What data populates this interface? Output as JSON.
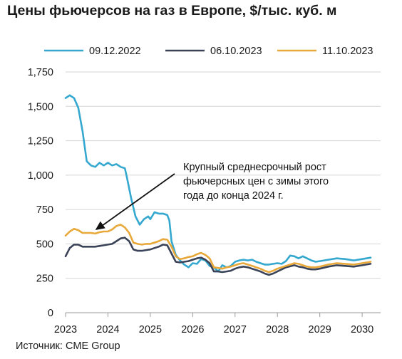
{
  "title": "Цены фьючерсов на газ в Европе, $/тыс. куб. м",
  "source": "Источник: CME Group",
  "chart_data": {
    "type": "line",
    "title": "Цены фьючерсов на газ в Европе, $/тыс. куб. м",
    "xlabel": "",
    "ylabel": "",
    "xlim": [
      2023,
      2030.2
    ],
    "ylim": [
      0,
      1750
    ],
    "x_ticks": [
      "2023",
      "2024",
      "2025",
      "2026",
      "2027",
      "2028",
      "2029",
      "2030"
    ],
    "y_ticks": [
      "0",
      "250",
      "500",
      "750",
      "1,000",
      "1,250",
      "1,500",
      "1,750"
    ],
    "grid": "horizontal",
    "legend": "top",
    "series": [
      {
        "name": "09.12.2022",
        "color": "#35a8d0",
        "points": [
          [
            2023.0,
            1560
          ],
          [
            2023.1,
            1580
          ],
          [
            2023.2,
            1560
          ],
          [
            2023.3,
            1490
          ],
          [
            2023.4,
            1320
          ],
          [
            2023.5,
            1100
          ],
          [
            2023.6,
            1070
          ],
          [
            2023.7,
            1060
          ],
          [
            2023.8,
            1090
          ],
          [
            2023.9,
            1070
          ],
          [
            2024.0,
            1090
          ],
          [
            2024.1,
            1070
          ],
          [
            2024.2,
            1080
          ],
          [
            2024.3,
            1060
          ],
          [
            2024.4,
            1050
          ],
          [
            2024.45,
            980
          ],
          [
            2024.55,
            830
          ],
          [
            2024.65,
            700
          ],
          [
            2024.75,
            640
          ],
          [
            2024.85,
            680
          ],
          [
            2024.95,
            700
          ],
          [
            2025.0,
            680
          ],
          [
            2025.1,
            730
          ],
          [
            2025.2,
            720
          ],
          [
            2025.3,
            720
          ],
          [
            2025.4,
            710
          ],
          [
            2025.45,
            670
          ],
          [
            2025.5,
            520
          ],
          [
            2025.6,
            420
          ],
          [
            2025.7,
            380
          ],
          [
            2025.8,
            350
          ],
          [
            2025.9,
            330
          ],
          [
            2026.0,
            360
          ],
          [
            2026.1,
            355
          ],
          [
            2026.2,
            390
          ],
          [
            2026.3,
            380
          ],
          [
            2026.4,
            340
          ],
          [
            2026.5,
            330
          ],
          [
            2026.6,
            300
          ],
          [
            2026.7,
            345
          ],
          [
            2026.8,
            330
          ],
          [
            2026.9,
            340
          ],
          [
            2027.0,
            370
          ],
          [
            2027.1,
            380
          ],
          [
            2027.2,
            385
          ],
          [
            2027.3,
            380
          ],
          [
            2027.4,
            385
          ],
          [
            2027.5,
            370
          ],
          [
            2027.6,
            360
          ],
          [
            2027.7,
            350
          ],
          [
            2027.8,
            350
          ],
          [
            2027.9,
            355
          ],
          [
            2028.0,
            360
          ],
          [
            2028.1,
            355
          ],
          [
            2028.2,
            375
          ],
          [
            2028.3,
            415
          ],
          [
            2028.4,
            410
          ],
          [
            2028.5,
            395
          ],
          [
            2028.6,
            410
          ],
          [
            2028.7,
            395
          ],
          [
            2028.8,
            380
          ],
          [
            2028.9,
            370
          ],
          [
            2029.0,
            375
          ],
          [
            2029.2,
            385
          ],
          [
            2029.4,
            395
          ],
          [
            2029.6,
            390
          ],
          [
            2029.8,
            380
          ],
          [
            2030.0,
            390
          ],
          [
            2030.2,
            400
          ]
        ]
      },
      {
        "name": "06.10.2023",
        "color": "#3a4357",
        "points": [
          [
            2023.0,
            410
          ],
          [
            2023.1,
            470
          ],
          [
            2023.2,
            495
          ],
          [
            2023.3,
            495
          ],
          [
            2023.4,
            480
          ],
          [
            2023.5,
            480
          ],
          [
            2023.6,
            480
          ],
          [
            2023.7,
            480
          ],
          [
            2023.8,
            485
          ],
          [
            2023.9,
            490
          ],
          [
            2024.0,
            495
          ],
          [
            2024.1,
            500
          ],
          [
            2024.2,
            520
          ],
          [
            2024.3,
            540
          ],
          [
            2024.4,
            545
          ],
          [
            2024.5,
            520
          ],
          [
            2024.6,
            460
          ],
          [
            2024.7,
            450
          ],
          [
            2024.8,
            450
          ],
          [
            2024.9,
            455
          ],
          [
            2025.0,
            460
          ],
          [
            2025.1,
            470
          ],
          [
            2025.2,
            480
          ],
          [
            2025.3,
            495
          ],
          [
            2025.4,
            490
          ],
          [
            2025.5,
            430
          ],
          [
            2025.6,
            370
          ],
          [
            2025.7,
            365
          ],
          [
            2025.8,
            370
          ],
          [
            2025.9,
            375
          ],
          [
            2026.0,
            385
          ],
          [
            2026.1,
            395
          ],
          [
            2026.2,
            400
          ],
          [
            2026.3,
            385
          ],
          [
            2026.4,
            360
          ],
          [
            2026.5,
            300
          ],
          [
            2026.6,
            300
          ],
          [
            2026.7,
            295
          ],
          [
            2026.8,
            300
          ],
          [
            2026.9,
            305
          ],
          [
            2027.0,
            320
          ],
          [
            2027.1,
            330
          ],
          [
            2027.2,
            335
          ],
          [
            2027.3,
            330
          ],
          [
            2027.4,
            320
          ],
          [
            2027.5,
            310
          ],
          [
            2027.6,
            300
          ],
          [
            2027.7,
            285
          ],
          [
            2027.8,
            275
          ],
          [
            2027.9,
            285
          ],
          [
            2028.0,
            300
          ],
          [
            2028.2,
            330
          ],
          [
            2028.4,
            345
          ],
          [
            2028.5,
            335
          ],
          [
            2028.6,
            330
          ],
          [
            2028.7,
            320
          ],
          [
            2028.8,
            315
          ],
          [
            2028.9,
            315
          ],
          [
            2029.0,
            320
          ],
          [
            2029.2,
            335
          ],
          [
            2029.4,
            345
          ],
          [
            2029.6,
            340
          ],
          [
            2029.8,
            335
          ],
          [
            2030.0,
            345
          ],
          [
            2030.2,
            355
          ]
        ]
      },
      {
        "name": "11.10.2023",
        "color": "#e8a93a",
        "points": [
          [
            2023.0,
            560
          ],
          [
            2023.1,
            590
          ],
          [
            2023.2,
            610
          ],
          [
            2023.3,
            600
          ],
          [
            2023.4,
            580
          ],
          [
            2023.5,
            580
          ],
          [
            2023.6,
            580
          ],
          [
            2023.7,
            575
          ],
          [
            2023.8,
            585
          ],
          [
            2023.9,
            590
          ],
          [
            2024.0,
            590
          ],
          [
            2024.1,
            605
          ],
          [
            2024.2,
            630
          ],
          [
            2024.3,
            640
          ],
          [
            2024.4,
            620
          ],
          [
            2024.5,
            580
          ],
          [
            2024.6,
            510
          ],
          [
            2024.7,
            500
          ],
          [
            2024.8,
            495
          ],
          [
            2024.9,
            500
          ],
          [
            2025.0,
            500
          ],
          [
            2025.1,
            510
          ],
          [
            2025.2,
            520
          ],
          [
            2025.3,
            535
          ],
          [
            2025.4,
            530
          ],
          [
            2025.5,
            480
          ],
          [
            2025.6,
            410
          ],
          [
            2025.7,
            390
          ],
          [
            2025.8,
            395
          ],
          [
            2025.9,
            405
          ],
          [
            2026.0,
            410
          ],
          [
            2026.1,
            425
          ],
          [
            2026.2,
            435
          ],
          [
            2026.3,
            420
          ],
          [
            2026.4,
            395
          ],
          [
            2026.5,
            330
          ],
          [
            2026.6,
            325
          ],
          [
            2026.7,
            320
          ],
          [
            2026.8,
            330
          ],
          [
            2026.9,
            335
          ],
          [
            2027.0,
            345
          ],
          [
            2027.1,
            355
          ],
          [
            2027.2,
            360
          ],
          [
            2027.3,
            350
          ],
          [
            2027.4,
            340
          ],
          [
            2027.5,
            330
          ],
          [
            2027.6,
            320
          ],
          [
            2027.7,
            305
          ],
          [
            2027.8,
            295
          ],
          [
            2027.9,
            305
          ],
          [
            2028.0,
            320
          ],
          [
            2028.2,
            340
          ],
          [
            2028.4,
            360
          ],
          [
            2028.5,
            355
          ],
          [
            2028.6,
            345
          ],
          [
            2028.7,
            335
          ],
          [
            2028.8,
            330
          ],
          [
            2028.9,
            330
          ],
          [
            2029.0,
            335
          ],
          [
            2029.2,
            350
          ],
          [
            2029.4,
            360
          ],
          [
            2029.6,
            355
          ],
          [
            2029.8,
            350
          ],
          [
            2030.0,
            360
          ],
          [
            2030.2,
            370
          ]
        ]
      }
    ],
    "annotation": {
      "lines": [
        "Крупный среднесрочный рост",
        "фьючерсных цен с зимы этого",
        "года до конца 2024 г."
      ],
      "arrow_target": [
        2023.6,
        585
      ],
      "arrow_color": "#111111"
    }
  }
}
